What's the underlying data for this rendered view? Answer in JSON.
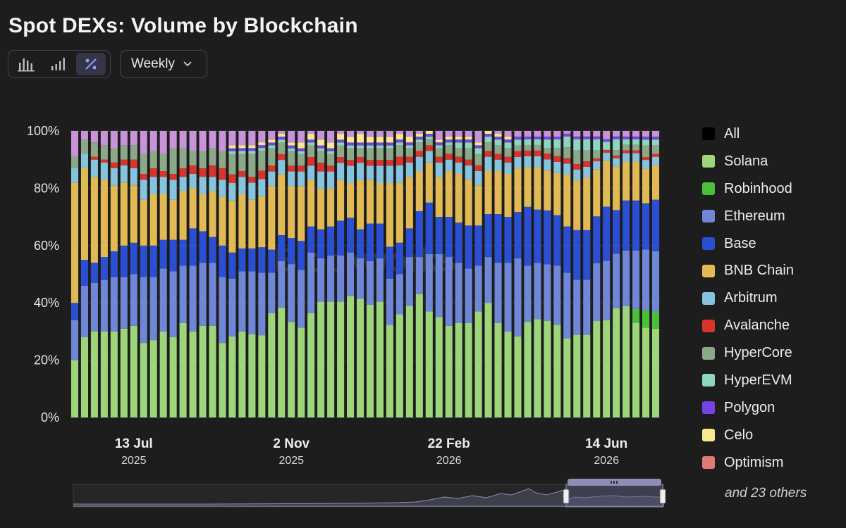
{
  "title": "Spot DEXs: Volume by Blockchain",
  "toolbar": {
    "views": [
      {
        "icon": "bar-chart-icon",
        "active": false
      },
      {
        "icon": "stacked-bar-icon",
        "active": false
      },
      {
        "icon": "percent-icon",
        "active": true
      }
    ],
    "interval": "Weekly"
  },
  "watermark": "Blockworks",
  "legend_more": "and 23 others",
  "chart_data": {
    "type": "bar",
    "stacked": true,
    "normalized": true,
    "title": "Spot DEXs: Volume by Blockchain",
    "ylim": [
      0,
      100
    ],
    "yticks": [
      "0%",
      "20%",
      "40%",
      "60%",
      "80%",
      "100%"
    ],
    "xticks": [
      {
        "index": 6,
        "label": "13 Jul",
        "year": "2025"
      },
      {
        "index": 22,
        "label": "2 Nov",
        "year": "2025"
      },
      {
        "index": 38,
        "label": "22 Feb",
        "year": "2026"
      },
      {
        "index": 54,
        "label": "14 Jun",
        "year": "2026"
      }
    ],
    "bar_count": 60,
    "series": [
      {
        "name": "Solana",
        "color": "#9dd67a",
        "values": [
          20,
          28,
          30,
          30,
          30,
          31,
          32,
          26,
          27,
          30,
          28,
          33,
          30,
          32,
          32,
          26,
          28,
          30,
          29,
          29,
          36,
          38,
          33,
          31,
          36,
          40,
          40,
          40,
          42,
          41,
          39,
          40,
          32,
          36,
          39,
          43,
          37,
          35,
          32,
          33,
          33,
          37,
          40,
          33,
          30,
          28,
          34,
          35,
          34,
          33,
          29,
          30,
          30,
          35,
          36,
          40,
          40,
          34,
          31,
          31
        ]
      },
      {
        "name": "Robinhood",
        "color": "#4cbf3a",
        "values": [
          0,
          0,
          0,
          0,
          0,
          0,
          0,
          0,
          0,
          0,
          0,
          0,
          0,
          0,
          0,
          0,
          0,
          0,
          0,
          0,
          0,
          0,
          0,
          0,
          0,
          0,
          0,
          0,
          0,
          0,
          0,
          0,
          0,
          0,
          0,
          0,
          0,
          0,
          0,
          0,
          0,
          0,
          0,
          0,
          0,
          0,
          0,
          0,
          0,
          0,
          0,
          0,
          0,
          0,
          0,
          0,
          0,
          5,
          6,
          6
        ]
      },
      {
        "name": "Ethereum",
        "color": "#6f87d6",
        "values": [
          14,
          18,
          17,
          18,
          19,
          18,
          18,
          23,
          22,
          22,
          23,
          20,
          23,
          22,
          22,
          23,
          20,
          21,
          22,
          22,
          14,
          16,
          20,
          20,
          21,
          15,
          16,
          16,
          15,
          14,
          15,
          15,
          16,
          14,
          17,
          13,
          20,
          22,
          24,
          21,
          19,
          16,
          16,
          21,
          24,
          27,
          20,
          20,
          20,
          21,
          24,
          20,
          20,
          21,
          22,
          20,
          20,
          21,
          21,
          21
        ]
      },
      {
        "name": "Base",
        "color": "#2b4fd3",
        "values": [
          6,
          9,
          7,
          8,
          9,
          11,
          11,
          11,
          11,
          10,
          11,
          9,
          13,
          11,
          9,
          11,
          9,
          8,
          8,
          9,
          8,
          9,
          9,
          10,
          9,
          10,
          10,
          12,
          12,
          10,
          13,
          12,
          11,
          11,
          10,
          16,
          18,
          13,
          14,
          14,
          15,
          14,
          15,
          17,
          16,
          16,
          21,
          19,
          19,
          18,
          17,
          18,
          18,
          17,
          20,
          16,
          18,
          18,
          16,
          18
        ]
      },
      {
        "name": "BNB Chain",
        "color": "#e1ba55",
        "values": [
          42,
          32,
          30,
          27,
          23,
          22,
          20,
          16,
          18,
          16,
          14,
          17,
          14,
          13,
          16,
          17,
          18,
          19,
          17,
          18,
          22,
          21,
          18,
          19,
          16,
          14,
          13,
          14,
          12,
          17,
          15,
          14,
          22,
          21,
          18,
          14,
          14,
          14,
          16,
          17,
          16,
          14,
          15,
          15,
          15,
          15,
          14,
          15,
          14,
          15,
          19,
          18,
          19,
          17,
          17,
          16,
          14,
          14,
          12,
          12
        ]
      },
      {
        "name": "Arbitrum",
        "color": "#85c3de",
        "values": [
          5,
          5,
          6,
          6,
          6,
          6,
          6,
          7,
          6,
          6,
          7,
          5,
          5,
          6,
          5,
          6,
          6,
          6,
          6,
          6,
          5,
          5,
          5,
          5,
          5,
          6,
          6,
          6,
          6,
          6,
          5,
          6,
          6,
          6,
          5,
          5,
          4,
          5,
          4,
          4,
          5,
          5,
          5,
          4,
          4,
          4,
          4,
          4,
          4,
          4,
          4,
          4,
          4,
          3,
          3,
          3,
          3,
          3,
          3,
          3
        ]
      },
      {
        "name": "Avalanche",
        "color": "#d8342c",
        "values": [
          0,
          0,
          1,
          1,
          2,
          2,
          3,
          2,
          3,
          2,
          2,
          3,
          3,
          3,
          4,
          4,
          3,
          2,
          2,
          3,
          2,
          2,
          2,
          2,
          3,
          3,
          2,
          2,
          2,
          2,
          2,
          2,
          2,
          3,
          2,
          2,
          2,
          2,
          2,
          2,
          2,
          2,
          2,
          2,
          2,
          2,
          2,
          2,
          2,
          2,
          2,
          2,
          2,
          1,
          1,
          1,
          1,
          1,
          1,
          1
        ]
      },
      {
        "name": "HyperCore",
        "color": "#8ba888",
        "values": [
          4,
          5,
          5,
          5,
          5,
          5,
          5,
          7,
          6,
          6,
          9,
          7,
          5,
          6,
          6,
          6,
          7,
          6,
          8,
          7,
          6,
          4,
          5,
          4,
          4,
          4,
          4,
          4,
          4,
          3,
          4,
          4,
          4,
          4,
          3,
          3,
          2,
          3,
          3,
          3,
          4,
          4,
          3,
          3,
          3,
          2,
          2,
          2,
          2,
          3,
          4,
          5,
          4,
          3,
          0,
          2,
          2,
          2,
          4,
          3
        ]
      },
      {
        "name": "HyperEVM",
        "color": "#8cd6c0",
        "values": [
          0,
          0,
          0,
          0,
          0,
          0,
          0,
          0,
          0,
          0,
          0,
          0,
          0,
          0,
          0,
          0,
          1,
          1,
          1,
          1,
          1,
          1,
          1,
          1,
          1,
          1,
          1,
          1,
          1,
          1,
          1,
          1,
          1,
          1,
          1,
          1,
          1,
          1,
          1,
          2,
          2,
          2,
          2,
          2,
          2,
          2,
          2,
          2,
          3,
          3,
          4,
          4,
          4,
          4,
          3,
          4,
          2,
          2,
          2,
          2
        ]
      },
      {
        "name": "Polygon",
        "color": "#7445e2",
        "values": [
          0,
          0,
          0,
          0,
          0,
          0,
          0,
          0,
          0,
          0,
          0,
          0,
          0,
          0,
          0,
          0,
          1,
          1,
          1,
          1,
          1,
          1,
          1,
          1,
          1,
          1,
          1,
          1,
          1,
          1,
          1,
          1,
          1,
          1,
          1,
          1,
          1,
          1,
          1,
          1,
          1,
          1,
          1,
          1,
          1,
          1,
          1,
          1,
          1,
          1,
          1,
          1,
          1,
          1,
          1,
          1,
          1,
          1,
          1,
          1
        ]
      },
      {
        "name": "Celo",
        "color": "#f8e98e",
        "values": [
          0,
          0,
          0,
          0,
          0,
          0,
          0,
          0,
          0,
          0,
          0,
          0,
          0,
          0,
          0,
          0,
          1,
          1,
          1,
          1,
          1,
          1,
          1,
          2,
          2,
          2,
          2,
          2,
          2,
          3,
          2,
          2,
          2,
          2,
          2,
          1,
          1,
          1,
          1,
          1,
          1,
          1,
          1,
          1,
          1,
          0,
          0,
          0,
          0,
          0,
          0,
          0,
          0,
          0,
          0,
          0,
          0,
          0,
          0,
          0
        ]
      },
      {
        "name": "Optimism",
        "color": "#e07a72",
        "values": [
          0,
          0,
          0,
          0,
          0,
          0,
          0,
          0,
          0,
          0,
          0,
          0,
          0,
          0,
          0,
          0,
          0,
          0,
          0,
          0,
          0,
          0,
          0,
          0,
          0,
          0,
          0,
          0,
          0,
          0,
          0,
          0,
          0,
          0,
          0,
          0,
          0,
          0,
          0,
          0,
          0,
          0,
          0,
          0,
          0,
          0,
          0,
          0,
          0,
          0,
          0,
          0,
          0,
          0,
          0,
          0,
          0,
          0,
          0,
          0
        ]
      },
      {
        "name": "Others",
        "color": "#c993d9",
        "values": [
          9,
          3,
          4,
          5,
          6,
          5,
          5,
          8,
          7,
          8,
          6,
          6,
          7,
          7,
          6,
          7,
          5,
          5,
          5,
          4,
          3,
          1,
          4,
          4,
          1,
          3,
          4,
          1,
          2,
          1,
          2,
          2,
          2,
          1,
          2,
          1,
          0,
          3,
          2,
          2,
          2,
          4,
          0,
          1,
          2,
          2,
          2,
          2,
          2,
          2,
          1,
          2,
          2,
          2,
          3,
          2,
          2,
          2,
          2,
          2
        ]
      }
    ]
  },
  "legend": [
    {
      "label": "All",
      "color": "#000000"
    },
    {
      "label": "Solana",
      "color": "#9dd67a"
    },
    {
      "label": "Robinhood",
      "color": "#4cbf3a"
    },
    {
      "label": "Ethereum",
      "color": "#6f87d6"
    },
    {
      "label": "Base",
      "color": "#2b4fd3"
    },
    {
      "label": "BNB Chain",
      "color": "#e1ba55"
    },
    {
      "label": "Arbitrum",
      "color": "#85c3de"
    },
    {
      "label": "Avalanche",
      "color": "#d8342c"
    },
    {
      "label": "HyperCore",
      "color": "#8ba888"
    },
    {
      "label": "HyperEVM",
      "color": "#8cd6c0"
    },
    {
      "label": "Polygon",
      "color": "#7445e2"
    },
    {
      "label": "Celo",
      "color": "#f8e98e"
    },
    {
      "label": "Optimism",
      "color": "#e07a72"
    }
  ]
}
